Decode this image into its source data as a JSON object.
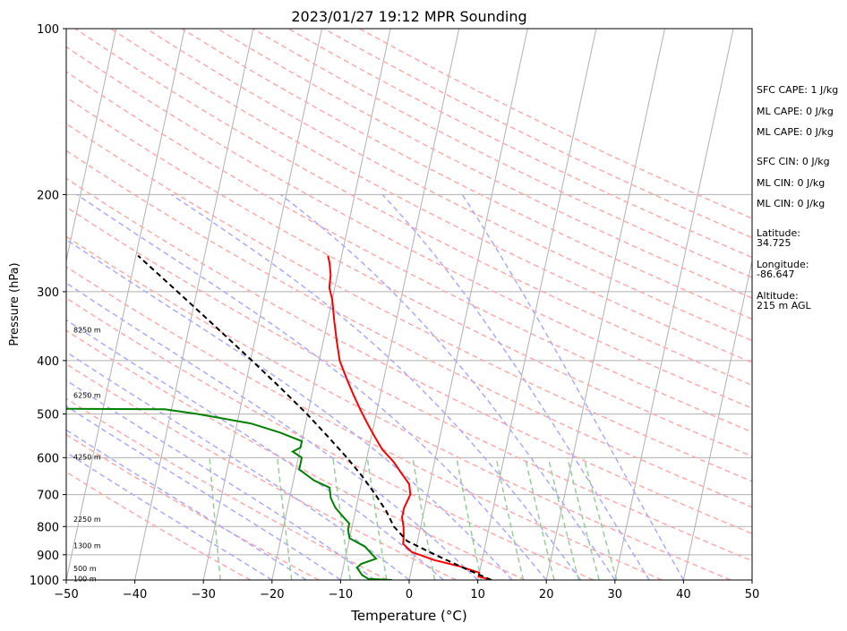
{
  "chart_data": {
    "type": "line",
    "title": "2023/01/27 19:12 MPR Sounding",
    "xlabel": "Temperature (°C)",
    "ylabel": "Pressure (hPa)",
    "xlim": [
      -50,
      50
    ],
    "ylim": [
      1000,
      100
    ],
    "y_scale": "log",
    "x_ticks": [
      "−50",
      "−40",
      "−30",
      "−20",
      "−10",
      "0",
      "10",
      "20",
      "30",
      "40",
      "50"
    ],
    "x_tick_values": [
      -50,
      -40,
      -30,
      -20,
      -10,
      0,
      10,
      20,
      30,
      40,
      50
    ],
    "y_ticks": [
      "100",
      "200",
      "300",
      "400",
      "500",
      "600",
      "700",
      "800",
      "900",
      "1000"
    ],
    "y_tick_values": [
      100,
      200,
      300,
      400,
      500,
      600,
      700,
      800,
      900,
      1000
    ],
    "grid": true,
    "series": [
      {
        "color": "#ff0000",
        "style": "solid",
        "points": [
          [
            1000,
            12.0
          ],
          [
            985,
            10.0
          ],
          [
            970,
            10.0
          ],
          [
            945,
            7.0
          ],
          [
            920,
            3.0
          ],
          [
            890,
            -0.5
          ],
          [
            860,
            -2.0
          ],
          [
            830,
            -2.2
          ],
          [
            800,
            -2.5
          ],
          [
            770,
            -3.0
          ],
          [
            740,
            -3.0
          ],
          [
            700,
            -2.5
          ],
          [
            670,
            -3.0
          ],
          [
            640,
            -4.5
          ],
          [
            610,
            -6.0
          ],
          [
            580,
            -8.0
          ],
          [
            550,
            -9.5
          ],
          [
            520,
            -11.0
          ],
          [
            490,
            -12.5
          ],
          [
            460,
            -14.0
          ],
          [
            430,
            -15.5
          ],
          [
            400,
            -17.0
          ],
          [
            370,
            -18.0
          ],
          [
            340,
            -19.0
          ],
          [
            310,
            -20.0
          ],
          [
            295,
            -20.8
          ],
          [
            280,
            -21.0
          ],
          [
            267,
            -21.5
          ],
          [
            258,
            -22.0
          ]
        ]
      },
      {
        "color": "#008000",
        "style": "solid",
        "points": [
          [
            1000,
            -2.5
          ],
          [
            995,
            -6.0
          ],
          [
            980,
            -7.0
          ],
          [
            950,
            -8.0
          ],
          [
            935,
            -7.5
          ],
          [
            915,
            -5.5
          ],
          [
            870,
            -7.5
          ],
          [
            840,
            -10.0
          ],
          [
            810,
            -10.5
          ],
          [
            790,
            -10.5
          ],
          [
            770,
            -11.5
          ],
          [
            740,
            -13.0
          ],
          [
            710,
            -14.0
          ],
          [
            680,
            -14.5
          ],
          [
            660,
            -17.0
          ],
          [
            630,
            -19.5
          ],
          [
            600,
            -19.5
          ],
          [
            585,
            -21.0
          ],
          [
            575,
            -20.0
          ],
          [
            560,
            -20.0
          ],
          [
            540,
            -23.5
          ],
          [
            520,
            -28.0
          ],
          [
            500,
            -36.0
          ],
          [
            490,
            -41.0
          ],
          [
            489,
            -60.0
          ]
        ]
      },
      {
        "color": "#000000",
        "style": "dashed",
        "points": [
          [
            1000,
            12.0
          ],
          [
            950,
            7.5
          ],
          [
            900,
            3.0
          ],
          [
            850,
            -1.5
          ],
          [
            800,
            -3.9
          ],
          [
            750,
            -5.5
          ],
          [
            700,
            -7.6
          ],
          [
            650,
            -10.0
          ],
          [
            600,
            -12.9
          ],
          [
            550,
            -16.3
          ],
          [
            500,
            -20.1
          ],
          [
            450,
            -24.6
          ],
          [
            400,
            -29.8
          ],
          [
            350,
            -35.8
          ],
          [
            300,
            -42.8
          ],
          [
            258,
            -49.7
          ]
        ]
      }
    ],
    "height_labels": [
      {
        "text": "100 m",
        "p": 995
      },
      {
        "text": "500 m",
        "p": 952
      },
      {
        "text": "1300 m",
        "p": 866
      },
      {
        "text": "2250 m",
        "p": 775
      },
      {
        "text": "4250 m",
        "p": 598
      },
      {
        "text": "6250 m",
        "p": 462
      },
      {
        "text": "8250 m",
        "p": 352
      }
    ],
    "colors": {
      "skew_isotherms": "#b0b0b0",
      "isobars": "#b0b0b0",
      "dry_adiabats": "#ffaaaa",
      "moist_adiabats": "#aaaaff",
      "mixing_ratio": "#99cc99"
    }
  },
  "side_info": {
    "sfc_cape": "SFC CAPE: 1 J/kg",
    "ml_cape_1": "ML CAPE: 0 J/kg",
    "ml_cape_2": "ML CAPE: 0 J/kg",
    "sfc_cin": "SFC CIN: 0 J/kg",
    "ml_cin_1": "ML CIN: 0 J/kg",
    "ml_cin_2": "ML CIN: 0 J/kg",
    "lat_label": "Latitude:",
    "lat_value": "34.725",
    "lon_label": "Longitude:",
    "lon_value": "-86.647",
    "alt_label": "Altitude:",
    "alt_value": "215 m AGL"
  }
}
